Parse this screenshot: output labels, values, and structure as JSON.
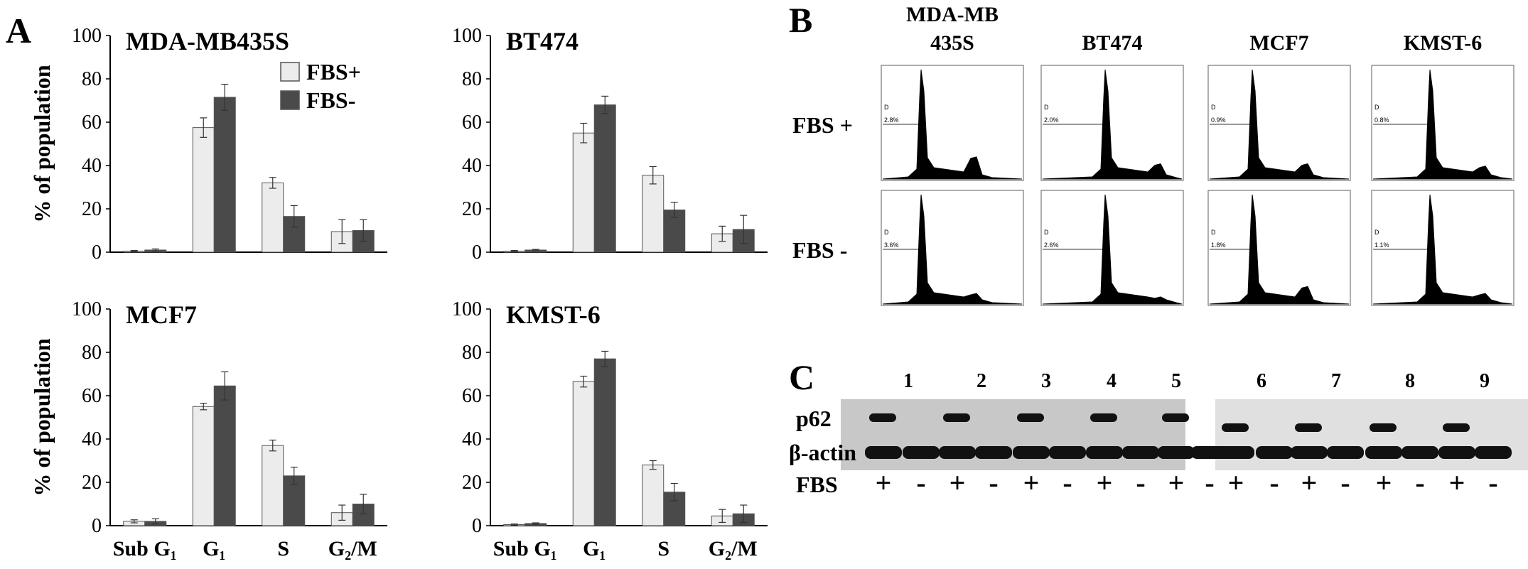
{
  "panel_letters": {
    "a": "A",
    "b": "B",
    "c": "C"
  },
  "colors": {
    "fbs_plus": "#ececec",
    "fbs_minus": "#4a4a4a",
    "axis": "#000000",
    "blot_bg": "#c8c8c8"
  },
  "chart_data": [
    {
      "type": "bar",
      "title": "MDA-MB435S",
      "ylabel": "% of population",
      "ylim": [
        0,
        100
      ],
      "yticks": [
        "0",
        "20",
        "40",
        "60",
        "80",
        "100"
      ],
      "categories": [
        "Sub G₁",
        "G₁",
        "S",
        "G₂/M"
      ],
      "legend": [
        "FBS+",
        "FBS-"
      ],
      "legend_placement": "top-right",
      "series": [
        {
          "name": "FBS+",
          "values": [
            0.5,
            57.5,
            32,
            9.5
          ],
          "errors": [
            0.3,
            4.5,
            2.5,
            5.5
          ]
        },
        {
          "name": "FBS-",
          "values": [
            1,
            71.5,
            16.5,
            10
          ],
          "errors": [
            0.5,
            6,
            5,
            5
          ]
        }
      ]
    },
    {
      "type": "bar",
      "title": "BT474",
      "ylabel": "",
      "ylim": [
        0,
        100
      ],
      "yticks": [
        "0",
        "20",
        "40",
        "60",
        "80",
        "100"
      ],
      "categories": [
        "Sub G₁",
        "G₁",
        "S",
        "G₂/M"
      ],
      "series": [
        {
          "name": "FBS+",
          "values": [
            0.5,
            55,
            35.5,
            8.5
          ],
          "errors": [
            0.3,
            4.5,
            4,
            3.5
          ]
        },
        {
          "name": "FBS-",
          "values": [
            1,
            68,
            19.5,
            10.5
          ],
          "errors": [
            0.3,
            4,
            3.5,
            6.5
          ]
        }
      ]
    },
    {
      "type": "bar",
      "title": "MCF7",
      "ylabel": "% of population",
      "ylim": [
        0,
        100
      ],
      "yticks": [
        "0",
        "20",
        "40",
        "60",
        "80",
        "100"
      ],
      "categories": [
        "Sub G₁",
        "G₁",
        "S",
        "G₂/M"
      ],
      "series": [
        {
          "name": "FBS+",
          "values": [
            2,
            55,
            37,
            6
          ],
          "errors": [
            0.7,
            1.5,
            2.5,
            3.5
          ]
        },
        {
          "name": "FBS-",
          "values": [
            2,
            64.5,
            23,
            10
          ],
          "errors": [
            1.2,
            6.5,
            4,
            4.5
          ]
        }
      ]
    },
    {
      "type": "bar",
      "title": "KMST-6",
      "ylabel": "",
      "ylim": [
        0,
        100
      ],
      "yticks": [
        "0",
        "20",
        "40",
        "60",
        "80",
        "100"
      ],
      "categories": [
        "Sub G₁",
        "G₁",
        "S",
        "G₂/M"
      ],
      "series": [
        {
          "name": "FBS+",
          "values": [
            0.5,
            66.5,
            28,
            4.5
          ],
          "errors": [
            0.3,
            2.5,
            2,
            3
          ]
        },
        {
          "name": "FBS-",
          "values": [
            1,
            77,
            15.5,
            5.5
          ],
          "errors": [
            0.3,
            3.5,
            4,
            4
          ]
        }
      ]
    }
  ],
  "flow": {
    "columns": [
      "MDA-MB\n435S",
      "BT474",
      "MCF7",
      "KMST-6"
    ],
    "rows": [
      "FBS +",
      "FBS -"
    ],
    "gate_label": "D",
    "subg1": [
      [
        "2.8%",
        "2.0%",
        "0.9%",
        "0.8%"
      ],
      [
        "3.6%",
        "2.6%",
        "1.8%",
        "1.1%"
      ]
    ]
  },
  "blot": {
    "lanes": [
      "1",
      "2",
      "3",
      "4",
      "5",
      "6",
      "7",
      "8",
      "9"
    ],
    "proteins": [
      "p62",
      "β-actin"
    ],
    "fbs_label": "FBS",
    "fbs_signs": [
      "+",
      "-",
      "+",
      "-",
      "+",
      "-",
      "+",
      "-",
      "+",
      "-",
      "+",
      "-",
      "+",
      "-",
      "+",
      "-",
      "+",
      "-"
    ]
  }
}
